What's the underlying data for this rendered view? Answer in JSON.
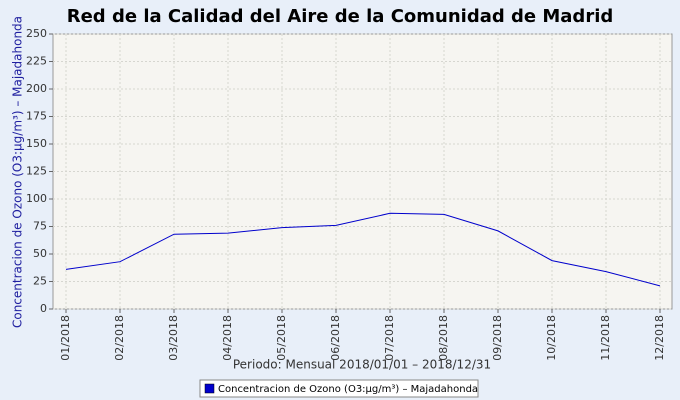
{
  "chart_data": {
    "type": "line",
    "title": "Red de la Calidad del Aire de la Comunidad de Madrid",
    "x_label": "Periodo: Mensual 2018/01/01 – 2018/12/31",
    "y_label": "Concentracion de Ozono (O3:µg/m³) – Majadahonda",
    "categories": [
      "01/2018",
      "02/2018",
      "03/2018",
      "04/2018",
      "05/2018",
      "06/2018",
      "07/2018",
      "08/2018",
      "09/2018",
      "10/2018",
      "11/2018",
      "12/2018"
    ],
    "series": [
      {
        "name": "Concentracion de Ozono (O3:µg/m³) – Majadahonda",
        "color": "#0000cc",
        "values": [
          36,
          43,
          68,
          69,
          74,
          76,
          87,
          86,
          71,
          44,
          34,
          21
        ]
      }
    ],
    "ylim": [
      0,
      250
    ],
    "yticks": [
      0,
      25,
      50,
      75,
      100,
      125,
      150,
      175,
      200,
      225,
      250
    ],
    "grid": true,
    "legend": "bottom"
  }
}
